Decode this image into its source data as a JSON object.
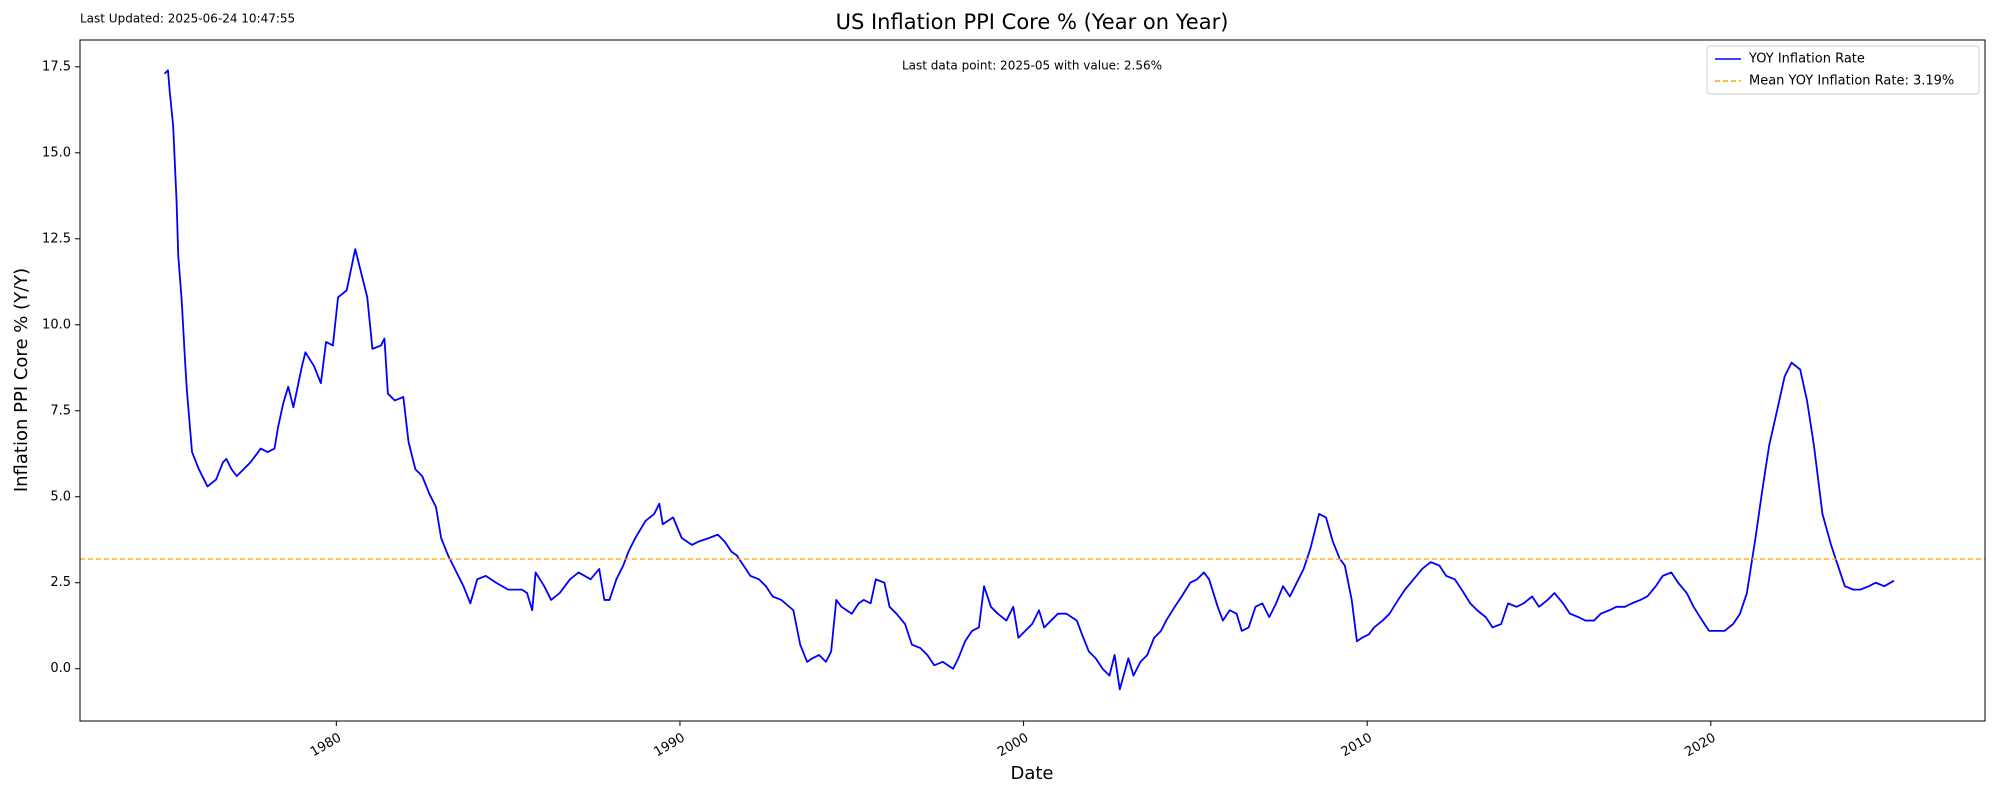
{
  "chart_data": {
    "type": "line",
    "title": "US Inflation PPI Core % (Year on Year)",
    "subtitle": "Last Updated: 2025-06-24 10:47:55",
    "annotation": "Last data point: 2025-05 with value: 2.56%",
    "xlabel": "Date",
    "ylabel": "Inflation PPI Core % (Y/Y)",
    "xlim": [
      1972.54,
      2027.98
    ],
    "ylim": [
      -1.52,
      18.28
    ],
    "xticks": [
      1980,
      1990,
      2000,
      2010,
      2020
    ],
    "yticks": [
      {
        "value": 0,
        "label": "0.0"
      },
      2.5,
      {
        "value": 5,
        "label": "5.0"
      },
      7.5,
      {
        "value": 10,
        "label": "10.0"
      },
      12.5,
      {
        "value": 15,
        "label": "15.0"
      },
      17.5
    ],
    "legend": "upper right",
    "x": [
      1975.0,
      1975.1,
      1975.15,
      1975.25,
      1975.35,
      1975.4,
      1975.5,
      1975.6,
      1975.65,
      1975.75,
      1975.8,
      1976.0,
      1976.15,
      1976.25,
      1976.5,
      1976.7,
      1976.8,
      1976.95,
      1977.1,
      1977.3,
      1977.5,
      1977.8,
      1978.0,
      1978.2,
      1978.3,
      1978.45,
      1978.6,
      1978.75,
      1979.0,
      1979.1,
      1979.35,
      1979.55,
      1979.7,
      1979.9,
      1980.05,
      1980.3,
      1980.55,
      1980.75,
      1980.9,
      1981.05,
      1981.3,
      1981.4,
      1981.5,
      1981.7,
      1981.95,
      1982.1,
      1982.3,
      1982.5,
      1982.7,
      1982.9,
      1983.05,
      1983.25,
      1983.45,
      1983.7,
      1983.9,
      1984.1,
      1984.35,
      1984.65,
      1985.0,
      1985.4,
      1985.55,
      1985.7,
      1985.8,
      1986.05,
      1986.25,
      1986.5,
      1986.8,
      1987.05,
      1987.4,
      1987.65,
      1987.8,
      1987.95,
      1988.15,
      1988.35,
      1988.5,
      1988.7,
      1989.0,
      1989.25,
      1989.4,
      1989.5,
      1989.8,
      1990.05,
      1990.35,
      1990.55,
      1990.85,
      1991.1,
      1991.3,
      1991.5,
      1991.65,
      1991.85,
      1992.05,
      1992.3,
      1992.5,
      1992.7,
      1992.95,
      1993.3,
      1993.5,
      1993.7,
      1993.85,
      1994.05,
      1994.25,
      1994.4,
      1994.55,
      1994.7,
      1995.0,
      1995.2,
      1995.35,
      1995.55,
      1995.7,
      1995.95,
      1996.1,
      1996.3,
      1996.55,
      1996.75,
      1997.0,
      1997.2,
      1997.4,
      1997.65,
      1997.95,
      1998.1,
      1998.3,
      1998.5,
      1998.7,
      1998.85,
      1999.05,
      1999.25,
      1999.5,
      1999.7,
      1999.85,
      2000.05,
      2000.25,
      2000.45,
      2000.6,
      2000.8,
      2001.0,
      2001.25,
      2001.55,
      2001.7,
      2001.9,
      2002.1,
      2002.3,
      2002.5,
      2002.65,
      2002.8,
      2003.05,
      2003.2,
      2003.4,
      2003.6,
      2003.8,
      2004.0,
      2004.15,
      2004.4,
      2004.6,
      2004.85,
      2005.05,
      2005.25,
      2005.4,
      2005.65,
      2005.8,
      2006.0,
      2006.2,
      2006.35,
      2006.55,
      2006.75,
      2006.95,
      2007.15,
      2007.35,
      2007.55,
      2007.75,
      2007.9,
      2008.15,
      2008.35,
      2008.6,
      2008.8,
      2009.0,
      2009.2,
      2009.35,
      2009.55,
      2009.7,
      2009.85,
      2010.05,
      2010.2,
      2010.45,
      2010.65,
      2010.9,
      2011.1,
      2011.35,
      2011.6,
      2011.85,
      2012.1,
      2012.3,
      2012.55,
      2012.75,
      2013.0,
      2013.2,
      2013.45,
      2013.65,
      2013.9,
      2014.1,
      2014.35,
      2014.55,
      2014.8,
      2015.0,
      2015.25,
      2015.45,
      2015.7,
      2015.9,
      2016.15,
      2016.35,
      2016.6,
      2016.8,
      2017.05,
      2017.25,
      2017.5,
      2017.7,
      2017.95,
      2018.15,
      2018.4,
      2018.6,
      2018.85,
      2019.05,
      2019.3,
      2019.5,
      2019.75,
      2019.95,
      2020.2,
      2020.4,
      2020.65,
      2020.85,
      2021.05,
      2021.3,
      2021.5,
      2021.7,
      2021.95,
      2022.15,
      2022.35,
      2022.6,
      2022.8,
      2023.0,
      2023.25,
      2023.5,
      2023.7,
      2023.9,
      2024.15,
      2024.35,
      2024.6,
      2024.8,
      2025.05,
      2025.33
    ],
    "series": [
      {
        "name": "YOY Inflation Rate",
        "color": "#0000ff",
        "values": [
          17.3,
          17.4,
          16.8,
          15.8,
          13.6,
          12.0,
          10.7,
          8.9,
          8.1,
          6.9,
          6.3,
          5.8,
          5.5,
          5.3,
          5.5,
          6.0,
          6.1,
          5.8,
          5.6,
          5.8,
          6.0,
          6.4,
          6.3,
          6.4,
          7.0,
          7.7,
          8.2,
          7.6,
          8.8,
          9.2,
          8.8,
          8.3,
          9.5,
          9.4,
          10.8,
          11.0,
          12.2,
          11.4,
          10.8,
          9.3,
          9.4,
          9.6,
          8.0,
          7.8,
          7.9,
          6.6,
          5.8,
          5.6,
          5.1,
          4.7,
          3.8,
          3.3,
          2.9,
          2.4,
          1.9,
          2.6,
          2.7,
          2.5,
          2.3,
          2.3,
          2.2,
          1.7,
          2.8,
          2.4,
          2.0,
          2.2,
          2.6,
          2.8,
          2.6,
          2.9,
          2.0,
          2.0,
          2.6,
          3.0,
          3.4,
          3.8,
          4.3,
          4.5,
          4.8,
          4.2,
          4.4,
          3.8,
          3.6,
          3.7,
          3.8,
          3.9,
          3.7,
          3.4,
          3.3,
          3.0,
          2.7,
          2.6,
          2.4,
          2.1,
          2.0,
          1.7,
          0.7,
          0.2,
          0.3,
          0.4,
          0.2,
          0.5,
          2.0,
          1.8,
          1.6,
          1.9,
          2.0,
          1.9,
          2.6,
          2.5,
          1.8,
          1.6,
          1.3,
          0.7,
          0.6,
          0.4,
          0.1,
          0.2,
          0.0,
          0.3,
          0.8,
          1.1,
          1.2,
          2.4,
          1.8,
          1.6,
          1.4,
          1.8,
          0.9,
          1.1,
          1.3,
          1.7,
          1.2,
          1.4,
          1.6,
          1.6,
          1.4,
          1.0,
          0.5,
          0.3,
          0.0,
          -0.2,
          0.4,
          -0.6,
          0.3,
          -0.2,
          0.2,
          0.4,
          0.9,
          1.1,
          1.4,
          1.8,
          2.1,
          2.5,
          2.6,
          2.8,
          2.6,
          1.8,
          1.4,
          1.7,
          1.6,
          1.1,
          1.2,
          1.8,
          1.9,
          1.5,
          1.9,
          2.4,
          2.1,
          2.4,
          2.9,
          3.5,
          4.5,
          4.4,
          3.7,
          3.2,
          3.0,
          2.0,
          0.8,
          0.9,
          1.0,
          1.2,
          1.4,
          1.6,
          2.0,
          2.3,
          2.6,
          2.9,
          3.1,
          3.0,
          2.7,
          2.6,
          2.3,
          1.9,
          1.7,
          1.5,
          1.2,
          1.3,
          1.9,
          1.8,
          1.9,
          2.1,
          1.8,
          2.0,
          2.2,
          1.9,
          1.6,
          1.5,
          1.4,
          1.4,
          1.6,
          1.7,
          1.8,
          1.8,
          1.9,
          2.0,
          2.1,
          2.4,
          2.7,
          2.8,
          2.5,
          2.2,
          1.8,
          1.4,
          1.1,
          1.1,
          1.1,
          1.3,
          1.6,
          2.2,
          3.8,
          5.2,
          6.5,
          7.6,
          8.5,
          8.9,
          8.7,
          7.8,
          6.5,
          4.5,
          3.6,
          3.0,
          2.4,
          2.3,
          2.3,
          2.4,
          2.5,
          2.4,
          2.56
        ]
      }
    ],
    "mean": {
      "value": 3.19,
      "label": "Mean YOY Inflation Rate: 3.19%",
      "color": "#ffa500"
    }
  }
}
